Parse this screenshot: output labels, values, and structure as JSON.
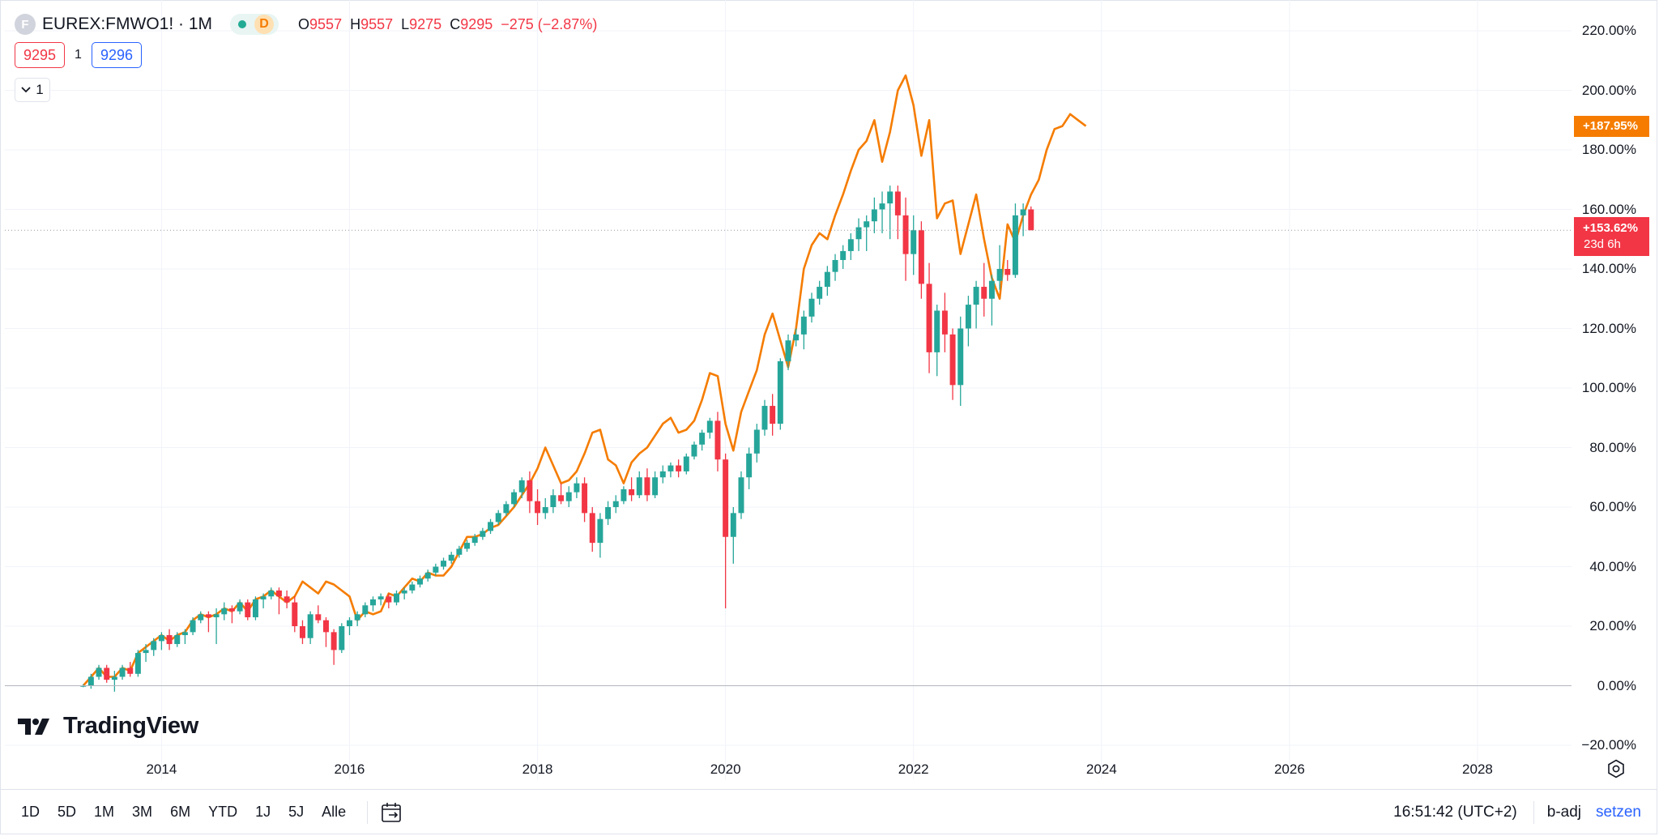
{
  "header": {
    "symbol_icon": "F",
    "symbol": "EUREX:FMWO1! · 1M",
    "status_letter": "D",
    "ohlc": [
      {
        "key": "O",
        "value": "9557"
      },
      {
        "key": "H",
        "value": "9557"
      },
      {
        "key": "L",
        "value": "9275"
      },
      {
        "key": "C",
        "value": "9295"
      }
    ],
    "change": "−275 (−2.87%)",
    "sell_price": "9295",
    "spread": "1",
    "buy_price": "9296",
    "indicators_count": "1"
  },
  "logo_text": "TradingView",
  "price_scale_tags": {
    "comparison": "+187.95%",
    "main": "+153.62%",
    "countdown": "23d 6h"
  },
  "colors": {
    "up": "#26a69a",
    "down": "#f23645",
    "compare_line": "#f57c00",
    "accent": "#2962ff"
  },
  "bottom_bar": {
    "ranges": [
      "1D",
      "5D",
      "1M",
      "3M",
      "6M",
      "YTD",
      "1J",
      "5J",
      "Alle"
    ],
    "calendar_icon": "calendar-goto-icon",
    "clock": "16:51:42 (UTC+2)",
    "adjustment": "b-adj",
    "settings_link": "setzen"
  },
  "chart_data": {
    "type": "candlestick",
    "x_ticks": [
      "2014",
      "2016",
      "2018",
      "2020",
      "2022",
      "2024",
      "2026",
      "2028"
    ],
    "y_ticks": [
      "220.00%",
      "200.00%",
      "180.00%",
      "160.00%",
      "140.00%",
      "120.00%",
      "100.00%",
      "80.00%",
      "60.00%",
      "40.00%",
      "20.00%",
      "0.00%",
      "−20.00%"
    ],
    "ylim": [
      -20,
      220
    ],
    "xlim": [
      "2012-05",
      "2029-01"
    ],
    "grid": true,
    "series": [
      {
        "name": "EUREX:FMWO1!",
        "kind": "candles",
        "start": "2013-03",
        "ohlc": [
          [
            0,
            0.5,
            -0.5,
            0
          ],
          [
            0,
            4,
            -1,
            3
          ],
          [
            3,
            7,
            2,
            6
          ],
          [
            6,
            7,
            1,
            2
          ],
          [
            2,
            5,
            -2,
            3
          ],
          [
            3,
            7,
            2,
            6
          ],
          [
            6,
            8,
            3,
            4
          ],
          [
            4,
            12,
            3,
            11
          ],
          [
            11,
            14,
            8,
            12
          ],
          [
            12,
            16,
            10,
            15
          ],
          [
            15,
            18,
            12,
            17
          ],
          [
            17,
            19,
            12,
            14
          ],
          [
            14,
            18,
            13,
            17
          ],
          [
            17,
            19,
            14,
            18
          ],
          [
            18,
            23,
            17,
            22
          ],
          [
            22,
            25,
            21,
            24
          ],
          [
            24,
            25,
            18,
            23
          ],
          [
            23,
            26,
            14,
            24
          ],
          [
            24,
            28,
            22,
            26
          ],
          [
            26,
            27,
            21,
            25
          ],
          [
            25,
            29,
            24,
            28
          ],
          [
            28,
            29,
            22,
            23
          ],
          [
            23,
            30,
            22,
            29
          ],
          [
            29,
            31,
            26,
            30
          ],
          [
            30,
            33,
            29,
            32
          ],
          [
            32,
            33,
            24,
            30
          ],
          [
            30,
            32,
            26,
            28
          ],
          [
            28,
            30,
            18,
            20
          ],
          [
            20,
            22,
            14,
            16
          ],
          [
            16,
            25,
            14,
            24
          ],
          [
            24,
            27,
            21,
            22
          ],
          [
            22,
            23,
            13,
            18
          ],
          [
            18,
            19,
            7,
            12
          ],
          [
            12,
            21,
            11,
            20
          ],
          [
            20,
            23,
            17,
            22
          ],
          [
            22,
            25,
            20,
            24
          ],
          [
            24,
            28,
            23,
            27
          ],
          [
            27,
            30,
            25,
            29
          ],
          [
            29,
            31,
            27,
            30
          ],
          [
            30,
            31,
            26,
            28
          ],
          [
            28,
            32,
            27,
            31
          ],
          [
            31,
            33,
            29,
            32
          ],
          [
            32,
            35,
            31,
            34
          ],
          [
            34,
            37,
            33,
            36
          ],
          [
            36,
            39,
            35,
            38
          ],
          [
            38,
            41,
            37,
            40
          ],
          [
            40,
            43,
            39,
            42
          ],
          [
            42,
            45,
            41,
            44
          ],
          [
            44,
            47,
            43,
            46
          ],
          [
            46,
            49,
            45,
            48
          ],
          [
            48,
            51,
            47,
            50
          ],
          [
            50,
            53,
            49,
            52
          ],
          [
            52,
            56,
            51,
            55
          ],
          [
            55,
            59,
            54,
            58
          ],
          [
            58,
            62,
            57,
            61
          ],
          [
            61,
            66,
            60,
            65
          ],
          [
            65,
            70,
            63,
            69
          ],
          [
            69,
            72,
            58,
            62
          ],
          [
            62,
            66,
            54,
            58
          ],
          [
            58,
            63,
            56,
            60
          ],
          [
            60,
            66,
            58,
            64
          ],
          [
            64,
            68,
            61,
            62
          ],
          [
            62,
            67,
            60,
            65
          ],
          [
            65,
            70,
            63,
            68
          ],
          [
            68,
            70,
            55,
            58
          ],
          [
            58,
            60,
            45,
            48
          ],
          [
            48,
            58,
            43,
            56
          ],
          [
            56,
            62,
            54,
            60
          ],
          [
            60,
            64,
            58,
            62
          ],
          [
            62,
            67,
            61,
            66
          ],
          [
            66,
            70,
            62,
            64
          ],
          [
            64,
            72,
            63,
            70
          ],
          [
            70,
            73,
            62,
            64
          ],
          [
            64,
            72,
            63,
            70
          ],
          [
            70,
            74,
            68,
            72
          ],
          [
            72,
            75,
            70,
            74
          ],
          [
            74,
            76,
            70,
            72
          ],
          [
            72,
            78,
            71,
            77
          ],
          [
            77,
            82,
            76,
            81
          ],
          [
            81,
            86,
            79,
            85
          ],
          [
            85,
            90,
            83,
            89
          ],
          [
            89,
            92,
            72,
            76
          ],
          [
            76,
            78,
            26,
            50
          ],
          [
            50,
            60,
            41,
            58
          ],
          [
            58,
            72,
            56,
            70
          ],
          [
            70,
            80,
            66,
            78
          ],
          [
            78,
            88,
            75,
            86
          ],
          [
            86,
            96,
            84,
            94
          ],
          [
            94,
            98,
            84,
            88
          ],
          [
            88,
            110,
            86,
            109
          ],
          [
            109,
            118,
            106,
            116
          ],
          [
            116,
            120,
            114,
            118
          ],
          [
            118,
            126,
            113,
            124
          ],
          [
            124,
            132,
            122,
            130
          ],
          [
            130,
            136,
            128,
            134
          ],
          [
            134,
            141,
            131,
            139
          ],
          [
            139,
            145,
            136,
            143
          ],
          [
            143,
            148,
            140,
            146
          ],
          [
            146,
            152,
            143,
            150
          ],
          [
            150,
            157,
            146,
            154
          ],
          [
            154,
            158,
            146,
            156
          ],
          [
            156,
            164,
            152,
            160
          ],
          [
            160,
            166,
            152,
            162
          ],
          [
            162,
            168,
            150,
            166
          ],
          [
            166,
            168,
            150,
            158
          ],
          [
            158,
            164,
            136,
            145
          ],
          [
            145,
            158,
            138,
            153
          ],
          [
            153,
            156,
            130,
            135
          ],
          [
            135,
            142,
            105,
            112
          ],
          [
            112,
            128,
            104,
            126
          ],
          [
            126,
            132,
            112,
            118
          ],
          [
            118,
            120,
            96,
            101
          ],
          [
            101,
            124,
            94,
            120
          ],
          [
            120,
            131,
            114,
            128
          ],
          [
            128,
            136,
            120,
            134
          ],
          [
            134,
            142,
            124,
            130
          ],
          [
            130,
            138,
            121,
            136
          ],
          [
            136,
            148,
            133,
            140
          ],
          [
            140,
            143,
            136,
            138
          ],
          [
            138,
            162,
            137,
            158
          ],
          [
            158,
            162,
            151,
            160
          ],
          [
            160,
            161,
            153,
            153
          ]
        ]
      },
      {
        "name": "Comparison",
        "kind": "line",
        "start": "2013-03",
        "values": [
          0,
          3,
          6,
          3,
          3,
          6,
          5,
          11,
          13,
          15,
          17,
          15,
          17,
          18,
          22,
          24,
          23,
          24,
          26,
          25,
          28,
          25,
          29,
          30,
          32,
          30,
          28,
          30,
          35,
          33,
          31,
          35,
          34,
          32,
          30,
          22,
          25,
          24,
          25,
          31,
          30,
          33,
          36,
          35,
          38,
          37,
          37,
          40,
          45,
          50,
          50,
          51,
          53,
          54,
          57,
          60,
          64,
          68,
          73,
          80,
          74,
          68,
          69,
          72,
          78,
          85,
          86,
          76,
          74,
          68,
          75,
          78,
          80,
          84,
          88,
          90,
          85,
          86,
          89,
          96,
          105,
          104,
          88,
          79,
          92,
          99,
          106,
          118,
          125,
          116,
          107,
          120,
          140,
          148,
          152,
          150,
          158,
          165,
          173,
          180,
          183,
          190,
          176,
          186,
          200,
          205,
          195,
          178,
          190,
          157,
          162,
          163,
          145,
          155,
          165,
          150,
          137,
          130,
          155,
          149,
          158,
          165,
          170,
          180,
          187,
          188,
          192,
          190,
          188
        ]
      }
    ],
    "last_value_labels": [
      "+187.95%",
      "+153.62%"
    ]
  }
}
